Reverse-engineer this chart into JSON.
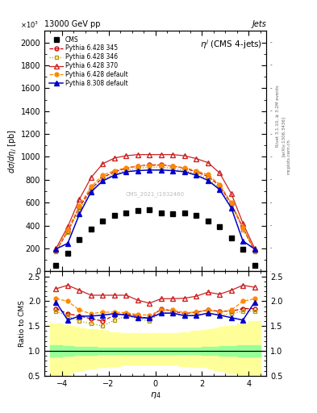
{
  "title": "13000 GeV pp",
  "right_label": "Jets",
  "watermark": "CMS_2021_I1932460",
  "rivet_text": "Rivet 3.1.10, ≥ 3.2M events",
  "arxiv_text": "[arXiv:1306.3436]",
  "mcplots_text": "mcplots.cern.ch",
  "cms_x": [
    -4.25,
    -3.75,
    -3.25,
    -2.75,
    -2.25,
    -1.75,
    -1.25,
    -0.75,
    -0.25,
    0.25,
    0.75,
    1.25,
    1.75,
    2.25,
    2.75,
    3.25,
    3.75,
    4.25
  ],
  "cms_y": [
    50,
    160,
    280,
    370,
    440,
    490,
    510,
    530,
    540,
    510,
    500,
    510,
    490,
    440,
    390,
    290,
    190,
    50
  ],
  "p6_345_y": [
    180,
    350,
    560,
    720,
    820,
    870,
    900,
    920,
    930,
    930,
    920,
    900,
    870,
    830,
    750,
    590,
    380,
    180
  ],
  "p6_346_y": [
    175,
    340,
    540,
    700,
    800,
    855,
    880,
    900,
    910,
    910,
    900,
    880,
    855,
    810,
    730,
    570,
    365,
    175
  ],
  "p6_370_y": [
    200,
    390,
    630,
    820,
    940,
    990,
    1010,
    1020,
    1020,
    1020,
    1020,
    1010,
    985,
    950,
    860,
    680,
    420,
    200
  ],
  "p6_def_y": [
    185,
    360,
    575,
    740,
    840,
    880,
    905,
    920,
    925,
    925,
    920,
    905,
    880,
    845,
    760,
    600,
    385,
    185
  ],
  "p8_def_y": [
    195,
    245,
    500,
    695,
    790,
    840,
    870,
    880,
    885,
    885,
    880,
    870,
    840,
    795,
    715,
    555,
    265,
    195
  ],
  "ratio_p6_345": [
    1.85,
    1.75,
    1.7,
    1.65,
    1.6,
    1.72,
    1.75,
    1.7,
    1.65,
    1.85,
    1.8,
    1.75,
    1.78,
    1.82,
    1.8,
    1.8,
    1.85,
    1.85
  ],
  "ratio_p6_346": [
    1.8,
    1.7,
    1.6,
    1.55,
    1.5,
    1.62,
    1.7,
    1.65,
    1.6,
    1.78,
    1.75,
    1.7,
    1.73,
    1.75,
    1.72,
    1.75,
    1.8,
    1.8
  ],
  "ratio_p6_370": [
    2.25,
    2.32,
    2.22,
    2.12,
    2.12,
    2.12,
    2.12,
    2.02,
    1.96,
    2.05,
    2.05,
    2.06,
    2.1,
    2.18,
    2.14,
    2.22,
    2.32,
    2.28
  ],
  "ratio_p6_def": [
    2.05,
    2.0,
    1.82,
    1.75,
    1.78,
    1.78,
    1.77,
    1.73,
    1.72,
    1.82,
    1.82,
    1.77,
    1.78,
    1.82,
    1.78,
    1.82,
    2.0,
    2.05
  ],
  "ratio_p8_def": [
    1.98,
    1.62,
    1.7,
    1.7,
    1.72,
    1.75,
    1.72,
    1.67,
    1.66,
    1.76,
    1.76,
    1.71,
    1.71,
    1.76,
    1.72,
    1.67,
    1.62,
    1.98
  ],
  "band_x_edges": [
    -4.5,
    -4.0,
    -3.75,
    -3.5,
    -3.25,
    -3.0,
    -2.5,
    -2.25,
    -2.0,
    -1.5,
    -1.0,
    -0.5,
    0.0,
    0.5,
    1.0,
    1.5,
    2.0,
    2.25,
    2.5,
    2.75,
    3.0,
    3.5,
    4.0,
    4.5
  ],
  "green_lo": [
    0.88,
    0.88,
    0.9,
    0.9,
    0.92,
    0.92,
    0.92,
    0.93,
    0.93,
    0.93,
    0.93,
    0.93,
    0.93,
    0.93,
    0.93,
    0.93,
    0.93,
    0.92,
    0.92,
    0.92,
    0.9,
    0.9,
    0.88,
    0.88
  ],
  "green_hi": [
    1.12,
    1.12,
    1.1,
    1.1,
    1.08,
    1.08,
    1.08,
    1.07,
    1.07,
    1.07,
    1.07,
    1.07,
    1.07,
    1.07,
    1.07,
    1.07,
    1.07,
    1.08,
    1.08,
    1.08,
    1.1,
    1.1,
    1.12,
    1.12
  ],
  "yellow_lo": [
    0.45,
    0.5,
    0.52,
    0.55,
    0.6,
    0.62,
    0.65,
    0.67,
    0.68,
    0.7,
    0.72,
    0.72,
    0.72,
    0.72,
    0.72,
    0.7,
    0.68,
    0.67,
    0.65,
    0.62,
    0.6,
    0.55,
    0.5,
    0.45
  ],
  "yellow_hi": [
    1.6,
    1.55,
    1.52,
    1.5,
    1.48,
    1.46,
    1.44,
    1.42,
    1.4,
    1.38,
    1.36,
    1.35,
    1.35,
    1.35,
    1.36,
    1.38,
    1.4,
    1.42,
    1.44,
    1.46,
    1.48,
    1.5,
    1.55,
    1.6
  ],
  "color_cms": "#000000",
  "color_p6_345": "#cc0000",
  "color_p6_346": "#bb9900",
  "color_p6_370": "#cc2222",
  "color_p6_def": "#ff8800",
  "color_p8_def": "#0000cc",
  "ylim_main": [
    0,
    2100
  ],
  "ylim_ratio": [
    0.5,
    2.6
  ],
  "xlim": [
    -4.75,
    4.75
  ]
}
